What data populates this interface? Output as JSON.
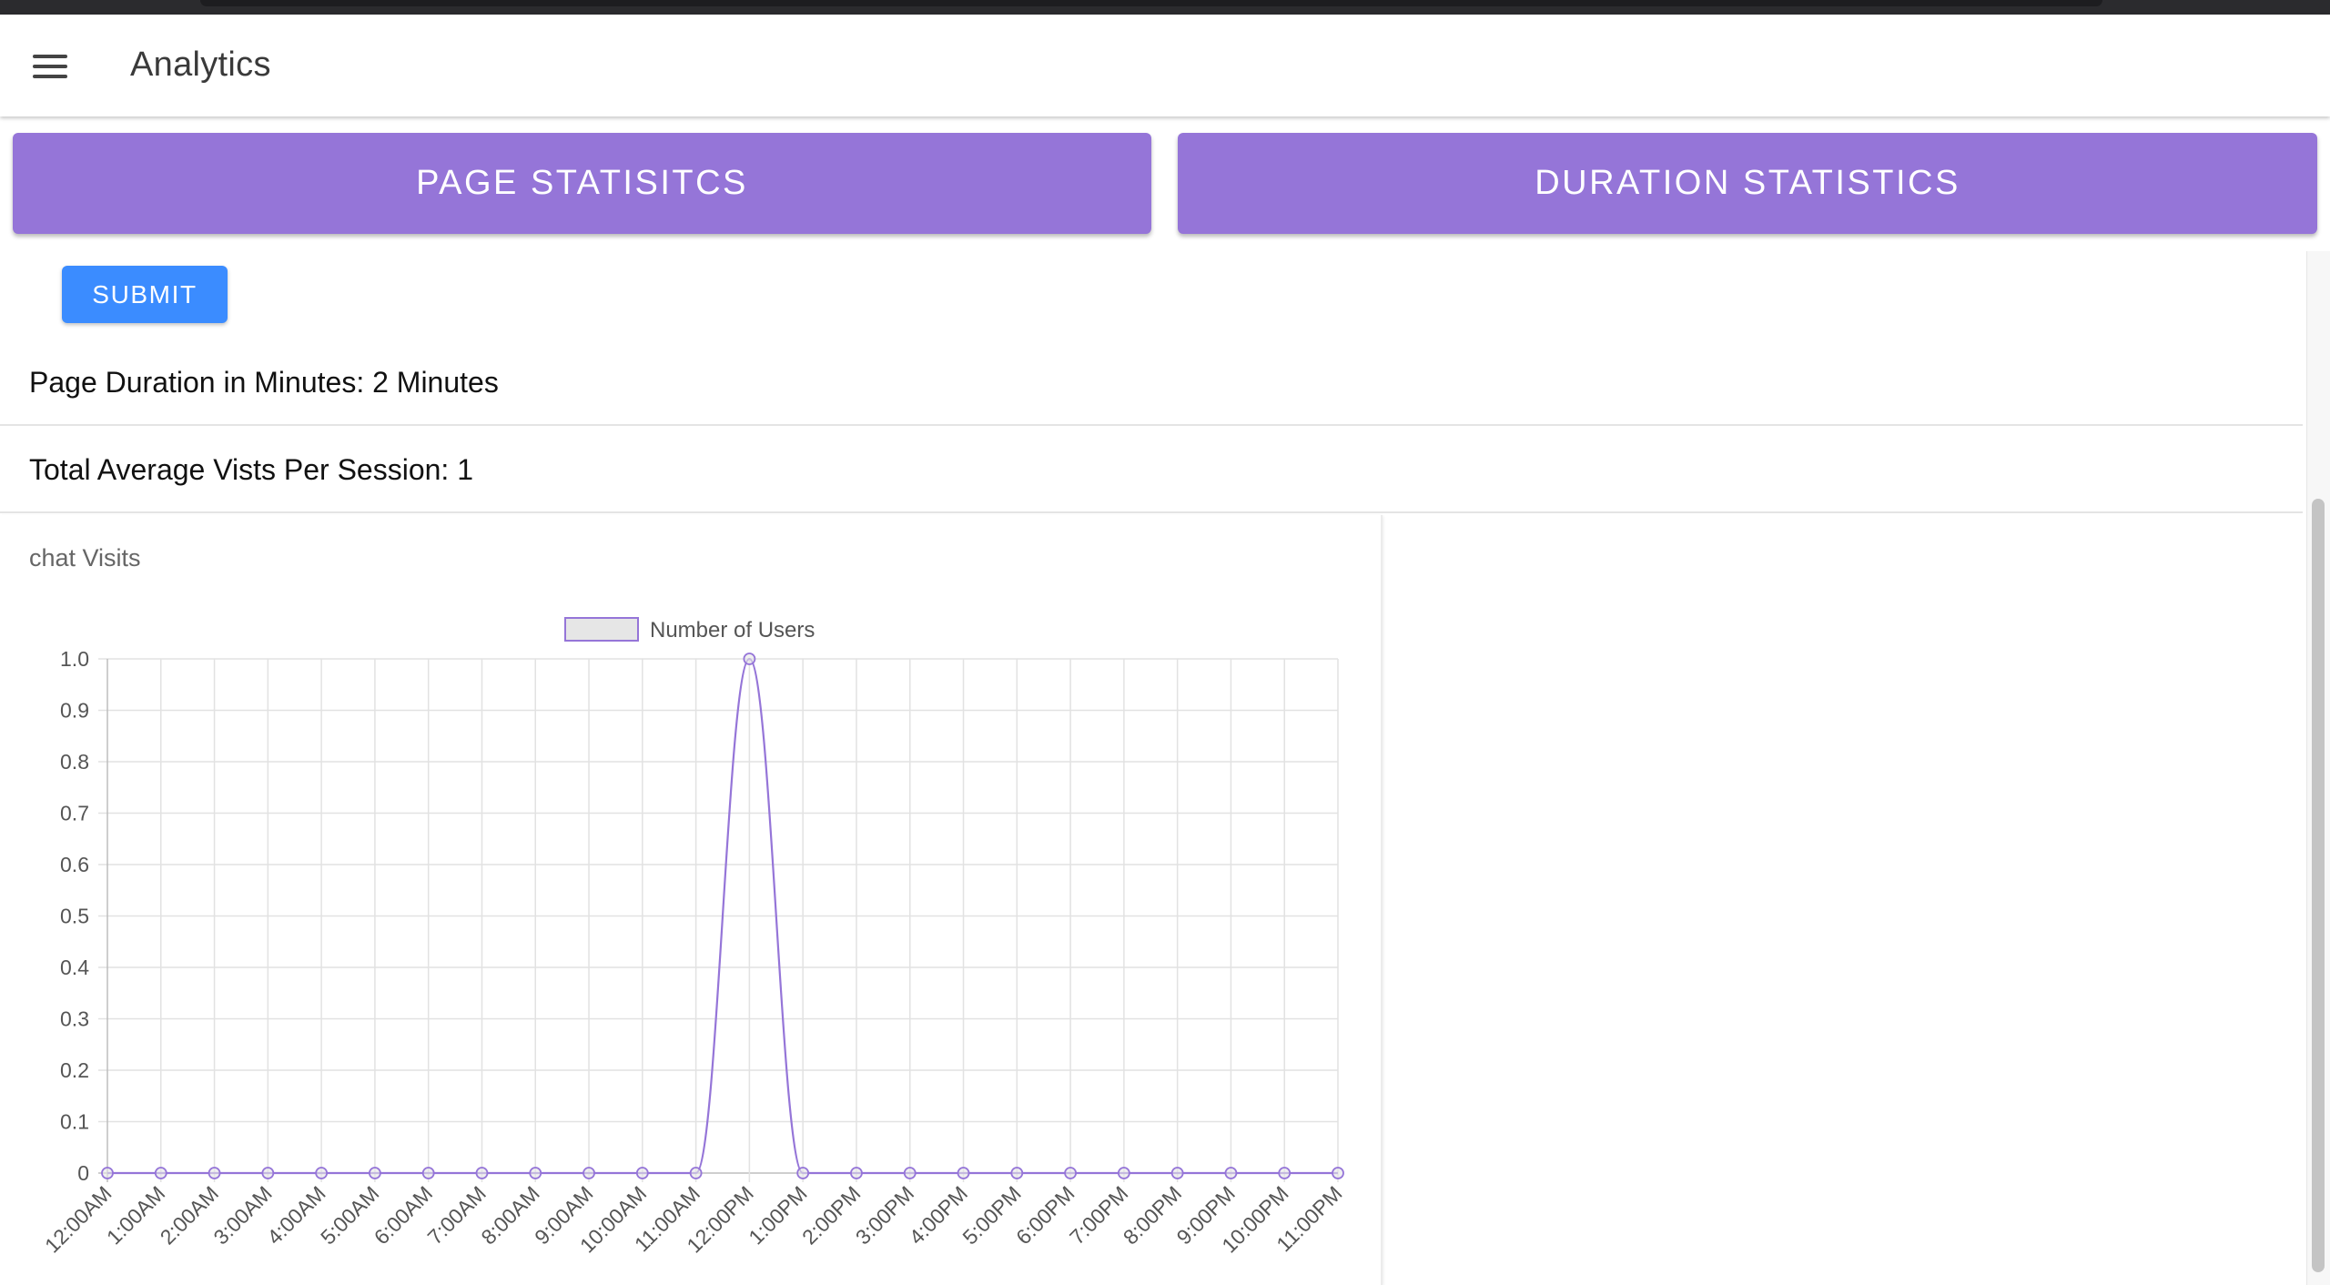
{
  "app": {
    "title": "Analytics",
    "menu_icon": "hamburger-menu-icon"
  },
  "tabs": {
    "page_label": "PAGE STATISITCS",
    "duration_label": "DURATION STATISTICS"
  },
  "colors": {
    "tab_background": "#9575d8",
    "submit_background": "#3b8cff",
    "series_line": "#9575d8"
  },
  "form": {
    "submit_label": "SUBMIT"
  },
  "stats": {
    "duration": "Page Duration in Minutes: 2 Minutes",
    "avg_visits": "Total Average Vists Per Session: 1"
  },
  "chart_data": {
    "type": "line",
    "title": "chat Visits",
    "categories": [
      "12:00AM",
      "1:00AM",
      "2:00AM",
      "3:00AM",
      "4:00AM",
      "5:00AM",
      "6:00AM",
      "7:00AM",
      "8:00AM",
      "9:00AM",
      "10:00AM",
      "11:00AM",
      "12:00PM",
      "1:00PM",
      "2:00PM",
      "3:00PM",
      "4:00PM",
      "5:00PM",
      "6:00PM",
      "7:00PM",
      "8:00PM",
      "9:00PM",
      "10:00PM",
      "11:00PM"
    ],
    "series": [
      {
        "name": "Number of Users",
        "values": [
          0,
          0,
          0,
          0,
          0,
          0,
          0,
          0,
          0,
          0,
          0,
          0,
          1,
          0,
          0,
          0,
          0,
          0,
          0,
          0,
          0,
          0,
          0,
          0
        ]
      }
    ],
    "ylim": [
      0,
      1
    ],
    "yticks": [
      "0",
      "0.1",
      "0.2",
      "0.3",
      "0.4",
      "0.5",
      "0.6",
      "0.7",
      "0.8",
      "0.9",
      "1.0"
    ],
    "grid": true,
    "legend": "top-center",
    "xlabel": "",
    "ylabel": ""
  }
}
